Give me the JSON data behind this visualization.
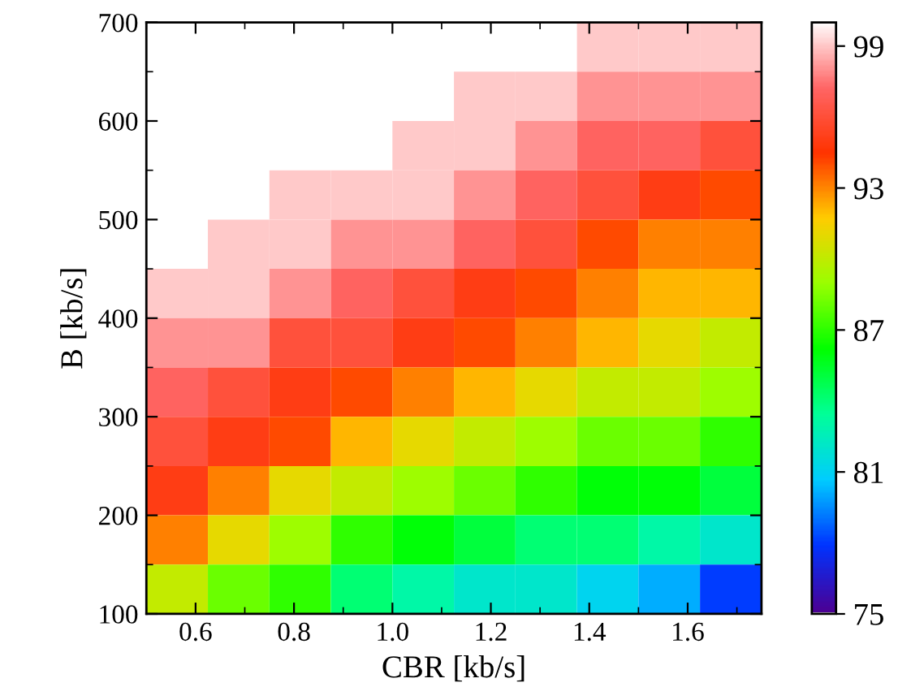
{
  "chart_data": {
    "type": "heatmap",
    "xlabel": "CBR [kb/s]",
    "ylabel": "B [kb/s]",
    "x": [
      0.5625,
      0.6875,
      0.8125,
      0.9375,
      1.0625,
      1.1875,
      1.3125,
      1.4375,
      1.5625,
      1.6875
    ],
    "y": [
      675,
      625,
      575,
      525,
      475,
      425,
      375,
      325,
      275,
      225,
      175,
      125
    ],
    "xlim": [
      0.5,
      1.75
    ],
    "xticks": [
      {
        "value": 0.6,
        "label": "0.6"
      },
      {
        "value": 0.8,
        "label": "0.8"
      },
      {
        "value": 1.0,
        "label": "1.0"
      },
      {
        "value": 1.2,
        "label": "1.2"
      },
      {
        "value": 1.4,
        "label": "1.4"
      },
      {
        "value": 1.6,
        "label": "1.6"
      }
    ],
    "ylim": [
      100,
      700
    ],
    "yticks": [
      100,
      200,
      300,
      400,
      500,
      600,
      700
    ],
    "clim": [
      75,
      100
    ],
    "cticks": [
      75,
      81,
      87,
      93,
      99
    ],
    "colors": [
      "#4b0094",
      "#0033ff",
      "#00ccff",
      "#00ff99",
      "#00ff00",
      "#99ff00",
      "#ffcc00",
      "#ff3300",
      "#ff6666",
      "#ffffff"
    ],
    "cells": [
      [
        100,
        100,
        100,
        100,
        100,
        100,
        100,
        99,
        99,
        99
      ],
      [
        100,
        100,
        100,
        100,
        100,
        99,
        99,
        98,
        98,
        98
      ],
      [
        100,
        100,
        100,
        100,
        99,
        99,
        98,
        97,
        97,
        96
      ],
      [
        100,
        100,
        99,
        99,
        99,
        98,
        97,
        96,
        95,
        94
      ],
      [
        100,
        99,
        99,
        98,
        98,
        97,
        96,
        94,
        93,
        93
      ],
      [
        99,
        99,
        98,
        97,
        96,
        95,
        94,
        93,
        92,
        92
      ],
      [
        98,
        98,
        96,
        96,
        95,
        94,
        93,
        92,
        91,
        90
      ],
      [
        97,
        96,
        95,
        94,
        93,
        92,
        91,
        90,
        90,
        89
      ],
      [
        96,
        95,
        94,
        92,
        91,
        90,
        89,
        88,
        88,
        87
      ],
      [
        95,
        93,
        91,
        90,
        89,
        88,
        87,
        86,
        86,
        85
      ],
      [
        93,
        91,
        89,
        87,
        86,
        85,
        84,
        84,
        83,
        82
      ],
      [
        90,
        88,
        87,
        84,
        83,
        82,
        82,
        81,
        80,
        78
      ]
    ]
  }
}
